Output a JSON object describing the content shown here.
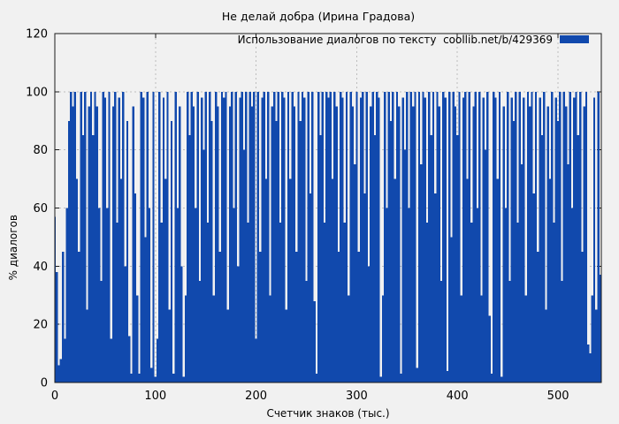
{
  "title": "Не делай добра (Ирина Градова)",
  "legend": {
    "label": "Использование диалогов по тексту  coollib.net/b/429369",
    "swatch_color": "#1149ad"
  },
  "axes": {
    "x_label": "Счетчик знаков (тыс.)",
    "y_label": "% диалогов"
  },
  "colors": {
    "background": "#f1f1f1",
    "bar": "#1149ad",
    "grid": "#bdbdbd",
    "axis": "#1a1a1a",
    "text": "#000000"
  },
  "chart_data": {
    "type": "bar",
    "style": "impulses",
    "title": "Не делай добра (Ирина Градова)",
    "xlabel": "Счетчик знаков (тыс.)",
    "ylabel": "% диалогов",
    "xlim": [
      0,
      543
    ],
    "ylim": [
      0,
      120
    ],
    "xticks": [
      0,
      100,
      200,
      300,
      400,
      500
    ],
    "yticks": [
      0,
      20,
      40,
      60,
      80,
      100,
      120
    ],
    "grid": true,
    "legend_position": "top-right-inside",
    "series": [
      {
        "name": "Использование диалогов по тексту  coollib.net/b/429369",
        "x_start": 0,
        "x_step": 2,
        "values": [
          57,
          38,
          6,
          8,
          45,
          15,
          60,
          90,
          100,
          95,
          100,
          70,
          45,
          100,
          85,
          100,
          25,
          95,
          100,
          85,
          100,
          95,
          60,
          35,
          100,
          98,
          60,
          100,
          15,
          95,
          100,
          55,
          98,
          70,
          100,
          40,
          90,
          16,
          3,
          95,
          65,
          30,
          3,
          100,
          98,
          50,
          100,
          60,
          5,
          100,
          2,
          15,
          100,
          55,
          98,
          70,
          100,
          25,
          90,
          3,
          100,
          60,
          95,
          40,
          2,
          30,
          100,
          85,
          100,
          95,
          60,
          100,
          35,
          98,
          80,
          100,
          55,
          100,
          90,
          30,
          100,
          95,
          45,
          100,
          98,
          100,
          25,
          95,
          100,
          60,
          100,
          40,
          98,
          100,
          80,
          100,
          55,
          100,
          95,
          100,
          15,
          100,
          45,
          98,
          100,
          70,
          100,
          30,
          95,
          100,
          90,
          100,
          55,
          100,
          98,
          25,
          100,
          70,
          100,
          95,
          45,
          100,
          90,
          100,
          98,
          35,
          100,
          65,
          100,
          28,
          3,
          100,
          85,
          100,
          55,
          100,
          98,
          100,
          70,
          100,
          95,
          45,
          100,
          98,
          55,
          100,
          30,
          100,
          95,
          75,
          100,
          45,
          98,
          100,
          65,
          100,
          40,
          95,
          100,
          85,
          100,
          98,
          2,
          30,
          100,
          60,
          100,
          90,
          100,
          70,
          100,
          95,
          3,
          98,
          80,
          100,
          60,
          100,
          95,
          100,
          5,
          100,
          75,
          100,
          98,
          55,
          100,
          85,
          100,
          65,
          100,
          95,
          35,
          100,
          98,
          4,
          100,
          50,
          100,
          95,
          85,
          100,
          30,
          98,
          100,
          70,
          100,
          55,
          95,
          100,
          60,
          100,
          30,
          98,
          80,
          100,
          23,
          3,
          100,
          98,
          70,
          100,
          2,
          95,
          60,
          100,
          35,
          98,
          90,
          100,
          55,
          100,
          75,
          98,
          30,
          100,
          95,
          100,
          65,
          100,
          45,
          98,
          85,
          100,
          25,
          95,
          70,
          100,
          55,
          98,
          90,
          100,
          35,
          100,
          95,
          75,
          100,
          60,
          98,
          100,
          85,
          100,
          45,
          95,
          100,
          13,
          10,
          30,
          98,
          25,
          100,
          37
        ]
      }
    ]
  }
}
